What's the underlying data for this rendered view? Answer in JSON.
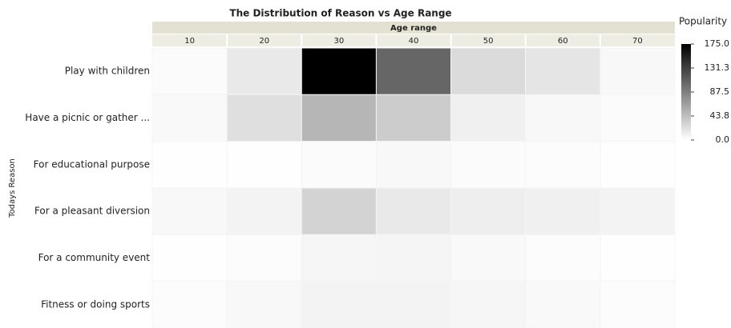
{
  "chart_data": {
    "type": "heatmap",
    "title": "The Distribution of Reason vs Age Range",
    "x_label": "Age range",
    "y_label": "Todays Reason",
    "colorbar_title": "Popularity",
    "x_categories": [
      "10",
      "20",
      "30",
      "40",
      "50",
      "60",
      "70"
    ],
    "y_categories": [
      "Play with children",
      "Have a picnic or gather ...",
      "For educational purpose",
      "For a pleasant diversion",
      "For a community event",
      "Fitness or doing sports"
    ],
    "values": [
      [
        3,
        15,
        175,
        105,
        25,
        18,
        5
      ],
      [
        4,
        22,
        50,
        35,
        10,
        5,
        3
      ],
      [
        1,
        1,
        3,
        5,
        3,
        2,
        1
      ],
      [
        5,
        8,
        30,
        15,
        12,
        10,
        8
      ],
      [
        1,
        2,
        6,
        7,
        4,
        2,
        1
      ],
      [
        2,
        5,
        8,
        8,
        6,
        4,
        2
      ]
    ],
    "zlim": [
      0,
      175
    ],
    "zticks": [
      {
        "value": 175,
        "label": "175.0"
      },
      {
        "value": 131.3,
        "label": "131.3"
      },
      {
        "value": 87.5,
        "label": "87.5"
      },
      {
        "value": 43.8,
        "label": "43.8"
      },
      {
        "value": 0,
        "label": "0.0"
      }
    ],
    "colors": [
      "#ffffff",
      "#000000"
    ]
  }
}
